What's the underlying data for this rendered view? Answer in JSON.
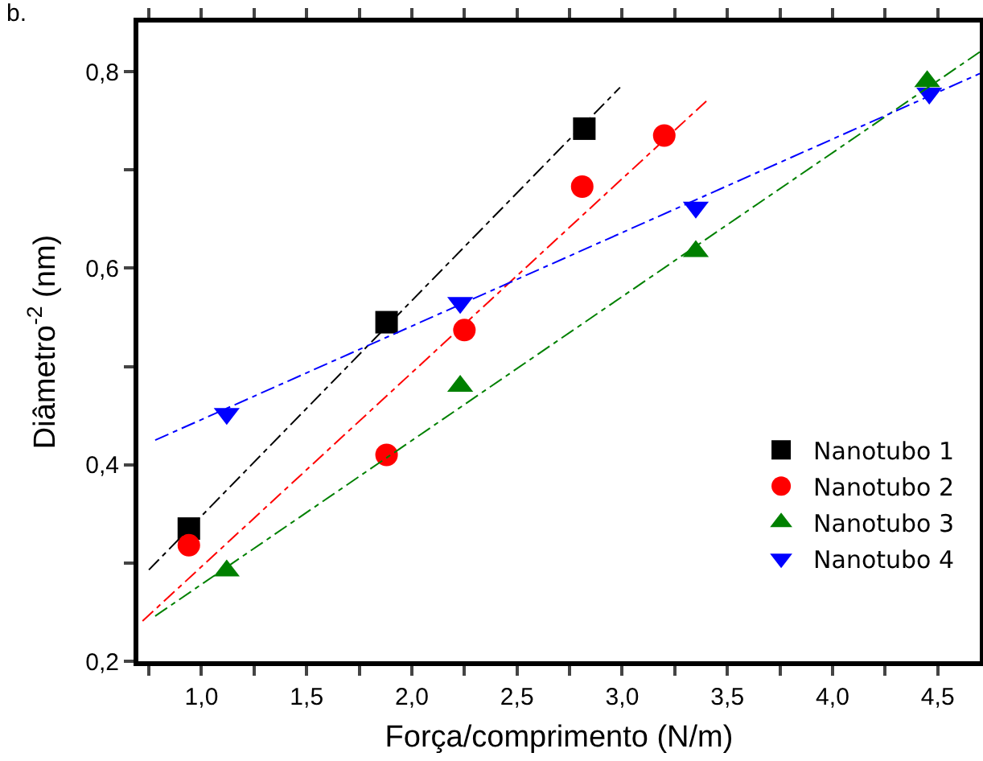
{
  "chart_data": {
    "type": "scatter",
    "xlabel": "Força/comprimento (N/m)",
    "ylabel": "Diâmetro$^{-2}$ (nm)",
    "annotations": [
      "b."
    ],
    "xlim": [
      0.7,
      4.7
    ],
    "ylim": [
      0.2,
      0.85
    ],
    "xticks": [
      {
        "value": 0.75,
        "label": null
      },
      {
        "value": 1,
        "label": "1,0"
      },
      {
        "value": 1.25,
        "label": null
      },
      {
        "value": 1.5,
        "label": "1,5"
      },
      {
        "value": 1.75,
        "label": null
      },
      {
        "value": 2,
        "label": "2,0"
      },
      {
        "value": 2.25,
        "label": null
      },
      {
        "value": 2.5,
        "label": "2,5"
      },
      {
        "value": 2.75,
        "label": null
      },
      {
        "value": 3,
        "label": "3,0"
      },
      {
        "value": 3.25,
        "label": null
      },
      {
        "value": 3.5,
        "label": "3,5"
      },
      {
        "value": 3.75,
        "label": null
      },
      {
        "value": 4,
        "label": "4,0"
      },
      {
        "value": 4.25,
        "label": null
      },
      {
        "value": 4.5,
        "label": "4,5"
      }
    ],
    "yticks": [
      {
        "value": 0.2,
        "label": "0,2"
      },
      {
        "value": 0.3,
        "label": null
      },
      {
        "value": 0.4,
        "label": "0,4"
      },
      {
        "value": 0.5,
        "label": null
      },
      {
        "value": 0.6,
        "label": "0,6"
      },
      {
        "value": 0.7,
        "label": null
      },
      {
        "value": 0.8,
        "label": "0,8"
      }
    ],
    "grid": false,
    "legend": "bottom right",
    "series": [
      {
        "name": "Nanotubo 1",
        "color": "#000000",
        "marker": "square",
        "x": [
          0.94,
          1.88,
          2.82
        ],
        "values": [
          0.335,
          0.545,
          0.742
        ]
      },
      {
        "name": "Nanotubo 2",
        "color": "#ff0000",
        "marker": "circle",
        "x": [
          0.94,
          1.88,
          2.25,
          2.81,
          3.2
        ],
        "values": [
          0.318,
          0.41,
          0.537,
          0.683,
          0.735
        ]
      },
      {
        "name": "Nanotubo 3",
        "color": "#008000",
        "marker": "triangle",
        "x": [
          1.12,
          2.23,
          3.35,
          4.45
        ],
        "values": [
          0.292,
          0.48,
          0.617,
          0.79
        ]
      },
      {
        "name": "Nanotubo 4",
        "color": "#0000ff",
        "marker": "triangle-down",
        "x": [
          1.12,
          2.23,
          3.35,
          4.46
        ],
        "values": [
          0.452,
          0.565,
          0.662,
          0.778
        ]
      },
      {
        "type": "line",
        "color": "#000000",
        "line_style": "dashed",
        "marker": "none",
        "x": [
          0.75,
          2.99
        ],
        "values": [
          0.293,
          0.784
        ]
      },
      {
        "type": "line",
        "color": "#ff0000",
        "line_style": "dashed",
        "marker": "none",
        "x": [
          0.72,
          3.4
        ],
        "values": [
          0.241,
          0.77
        ]
      },
      {
        "type": "line",
        "color": "#008000",
        "line_style": "dashed",
        "marker": "none",
        "x": [
          0.78,
          4.7
        ],
        "values": [
          0.246,
          0.82
        ]
      },
      {
        "type": "line",
        "color": "#0000ff",
        "line_style": "dashed",
        "marker": "none",
        "x": [
          0.78,
          4.7
        ],
        "values": [
          0.425,
          0.798
        ]
      }
    ]
  }
}
